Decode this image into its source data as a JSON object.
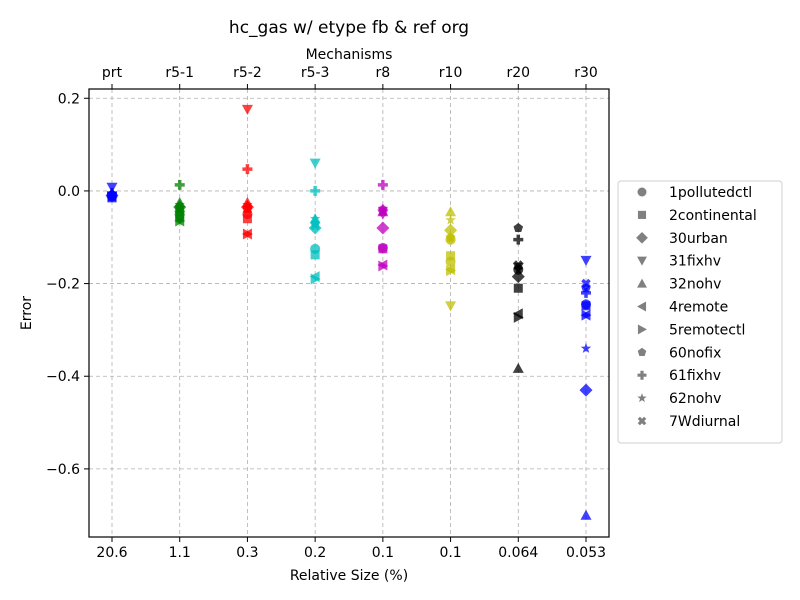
{
  "chart_data": {
    "type": "scatter",
    "title": "hc_gas w/ etype fb & ref org",
    "xlabel": "Relative Size (%)",
    "x2label": "Mechanisms",
    "ylabel": "Error",
    "categories": [
      "prt",
      "r5-1",
      "r5-2",
      "r5-3",
      "r8",
      "r10",
      "r20",
      "r30"
    ],
    "bottom_tick_labels": [
      "20.6",
      "1.1",
      "0.3",
      "0.2",
      "0.1",
      "0.1",
      "0.064",
      "0.053"
    ],
    "ylim": [
      -0.747,
      0.22
    ],
    "yticks": [
      0.2,
      0.0,
      -0.2,
      -0.4,
      -0.6
    ],
    "ytick_labels": [
      "0.2",
      "0.0",
      "−0.2",
      "−0.4",
      "−0.6"
    ],
    "grid": true,
    "legend_position": "right-outside",
    "category_colors": [
      "#0000ff",
      "#008000",
      "#ff0000",
      "#00bfbf",
      "#bf00bf",
      "#bfbf00",
      "#000000",
      "#0000ff"
    ],
    "series": [
      {
        "name": "1pollutedctl",
        "marker": "circle",
        "values": [
          -0.012,
          -0.045,
          -0.05,
          -0.125,
          -0.123,
          -0.153,
          -0.17,
          -0.245
        ]
      },
      {
        "name": "2continental",
        "marker": "square",
        "values": [
          -0.015,
          -0.055,
          -0.06,
          -0.138,
          -0.125,
          -0.14,
          -0.21,
          -0.248
        ]
      },
      {
        "name": "30urban",
        "marker": "diamond",
        "values": [
          -0.01,
          -0.035,
          -0.035,
          -0.08,
          -0.08,
          -0.085,
          -0.185,
          -0.43
        ]
      },
      {
        "name": "31fixhv",
        "marker": "triangle-down",
        "values": [
          0.008,
          -0.06,
          0.176,
          0.06,
          -0.05,
          -0.248,
          -0.165,
          -0.15
        ]
      },
      {
        "name": "32nohv",
        "marker": "triangle-up",
        "values": [
          -0.005,
          -0.025,
          -0.025,
          -0.06,
          -0.045,
          -0.045,
          -0.383,
          -0.7
        ]
      },
      {
        "name": "4remote",
        "marker": "triangle-left",
        "values": [
          -0.012,
          -0.065,
          -0.093,
          -0.185,
          -0.16,
          -0.17,
          -0.265,
          -0.268
        ]
      },
      {
        "name": "5remotectl",
        "marker": "triangle-right",
        "values": [
          -0.012,
          -0.065,
          -0.093,
          -0.19,
          -0.162,
          -0.172,
          -0.273,
          -0.268
        ]
      },
      {
        "name": "60nofix",
        "marker": "pentagon",
        "values": [
          -0.008,
          -0.04,
          -0.04,
          -0.07,
          -0.04,
          -0.1,
          -0.08,
          -0.21
        ]
      },
      {
        "name": "61fixhv",
        "marker": "plus",
        "values": [
          -0.005,
          0.013,
          0.047,
          0.0,
          0.013,
          -0.105,
          -0.105,
          -0.22
        ]
      },
      {
        "name": "62nohv",
        "marker": "star",
        "values": [
          -0.005,
          -0.03,
          -0.03,
          -0.06,
          -0.038,
          -0.063,
          -0.17,
          -0.34
        ]
      },
      {
        "name": "7Wdiurnal",
        "marker": "x-filled",
        "values": [
          -0.01,
          -0.04,
          -0.04,
          -0.075,
          -0.045,
          -0.105,
          -0.16,
          -0.2
        ]
      }
    ]
  }
}
